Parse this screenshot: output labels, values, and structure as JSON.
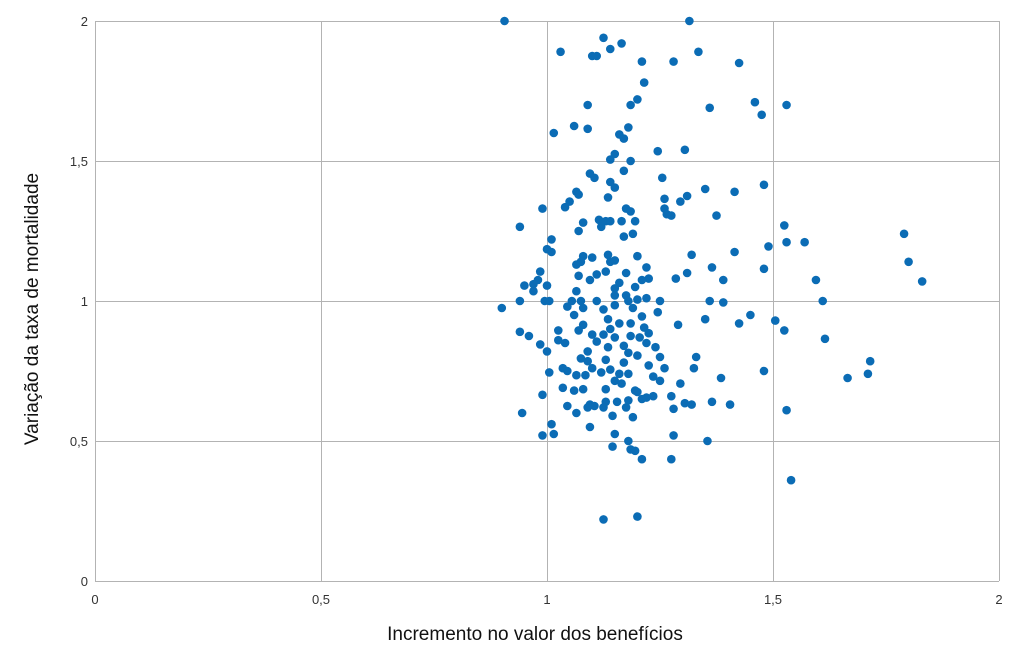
{
  "chart_data": {
    "type": "scatter",
    "title": "",
    "xlabel": "Incremento no valor dos benefícios",
    "ylabel": "Variação da taxa de mortalidade",
    "xlim": [
      0,
      2
    ],
    "ylim": [
      0,
      2
    ],
    "x_ticks": [
      0,
      0.5,
      1,
      1.5,
      2
    ],
    "y_ticks": [
      0,
      0.5,
      1,
      1.5,
      2
    ],
    "x_tick_labels": [
      "0",
      "0,5",
      "1",
      "1,5",
      "2"
    ],
    "y_tick_labels": [
      "0",
      "0,5",
      "1",
      "1,5",
      "2"
    ],
    "grid": true,
    "legend": "none",
    "marker_color": "#0b6cb5",
    "grid_color": "#b3b3b3",
    "series": [
      {
        "points": [
          [
            0.906,
            2.0
          ],
          [
            1.315,
            2.0
          ],
          [
            1.125,
            1.94
          ],
          [
            1.165,
            1.92
          ],
          [
            1.14,
            1.9
          ],
          [
            1.03,
            1.89
          ],
          [
            1.335,
            1.89
          ],
          [
            1.1,
            1.875
          ],
          [
            1.11,
            1.875
          ],
          [
            1.21,
            1.855
          ],
          [
            1.28,
            1.855
          ],
          [
            1.425,
            1.85
          ],
          [
            1.215,
            1.78
          ],
          [
            1.2,
            1.72
          ],
          [
            1.185,
            1.7
          ],
          [
            1.09,
            1.7
          ],
          [
            1.46,
            1.71
          ],
          [
            1.53,
            1.7
          ],
          [
            1.36,
            1.69
          ],
          [
            1.475,
            1.665
          ],
          [
            1.06,
            1.625
          ],
          [
            1.18,
            1.62
          ],
          [
            1.09,
            1.615
          ],
          [
            1.015,
            1.6
          ],
          [
            1.16,
            1.595
          ],
          [
            1.17,
            1.58
          ],
          [
            1.245,
            1.535
          ],
          [
            1.305,
            1.54
          ],
          [
            1.15,
            1.525
          ],
          [
            1.14,
            1.505
          ],
          [
            1.185,
            1.5
          ],
          [
            1.17,
            1.465
          ],
          [
            1.095,
            1.455
          ],
          [
            1.105,
            1.44
          ],
          [
            1.255,
            1.44
          ],
          [
            1.14,
            1.425
          ],
          [
            1.48,
            1.415
          ],
          [
            1.15,
            1.405
          ],
          [
            1.35,
            1.4
          ],
          [
            1.415,
            1.39
          ],
          [
            1.065,
            1.39
          ],
          [
            1.31,
            1.375
          ],
          [
            1.135,
            1.37
          ],
          [
            1.07,
            1.38
          ],
          [
            1.26,
            1.365
          ],
          [
            1.05,
            1.355
          ],
          [
            1.295,
            1.355
          ],
          [
            1.04,
            1.335
          ],
          [
            1.26,
            1.33
          ],
          [
            1.265,
            1.31
          ],
          [
            0.99,
            1.33
          ],
          [
            1.175,
            1.33
          ],
          [
            1.185,
            1.32
          ],
          [
            1.275,
            1.305
          ],
          [
            1.375,
            1.305
          ],
          [
            1.115,
            1.29
          ],
          [
            1.13,
            1.285
          ],
          [
            1.165,
            1.285
          ],
          [
            1.14,
            1.285
          ],
          [
            1.195,
            1.285
          ],
          [
            1.08,
            1.28
          ],
          [
            1.525,
            1.27
          ],
          [
            0.94,
            1.265
          ],
          [
            1.12,
            1.265
          ],
          [
            1.07,
            1.25
          ],
          [
            1.19,
            1.24
          ],
          [
            1.17,
            1.23
          ],
          [
            1.79,
            1.24
          ],
          [
            1.01,
            1.22
          ],
          [
            1.53,
            1.21
          ],
          [
            1.57,
            1.21
          ],
          [
            1.49,
            1.195
          ],
          [
            1.0,
            1.185
          ],
          [
            1.01,
            1.175
          ],
          [
            1.415,
            1.175
          ],
          [
            1.08,
            1.16
          ],
          [
            1.135,
            1.165
          ],
          [
            1.32,
            1.165
          ],
          [
            1.2,
            1.16
          ],
          [
            1.1,
            1.155
          ],
          [
            1.075,
            1.14
          ],
          [
            1.14,
            1.14
          ],
          [
            1.15,
            1.145
          ],
          [
            1.8,
            1.14
          ],
          [
            1.065,
            1.13
          ],
          [
            1.22,
            1.12
          ],
          [
            1.365,
            1.12
          ],
          [
            1.48,
            1.115
          ],
          [
            0.985,
            1.105
          ],
          [
            1.13,
            1.105
          ],
          [
            1.175,
            1.1
          ],
          [
            1.11,
            1.095
          ],
          [
            1.07,
            1.09
          ],
          [
            1.31,
            1.1
          ],
          [
            1.225,
            1.08
          ],
          [
            1.21,
            1.075
          ],
          [
            0.98,
            1.075
          ],
          [
            1.095,
            1.075
          ],
          [
            1.285,
            1.08
          ],
          [
            1.39,
            1.075
          ],
          [
            1.595,
            1.075
          ],
          [
            1.83,
            1.07
          ],
          [
            1.16,
            1.065
          ],
          [
            0.97,
            1.06
          ],
          [
            1.0,
            1.055
          ],
          [
            0.95,
            1.055
          ],
          [
            1.195,
            1.05
          ],
          [
            1.15,
            1.045
          ],
          [
            1.065,
            1.035
          ],
          [
            1.175,
            1.02
          ],
          [
            0.97,
            1.035
          ],
          [
            1.15,
            1.02
          ],
          [
            1.22,
            1.01
          ],
          [
            1.18,
            1.0
          ],
          [
            1.2,
            1.005
          ],
          [
            1.25,
            1.0
          ],
          [
            1.11,
            1.0
          ],
          [
            1.055,
            1.0
          ],
          [
            0.995,
            1.0
          ],
          [
            1.005,
            1.0
          ],
          [
            0.94,
            1.0
          ],
          [
            1.075,
            1.0
          ],
          [
            1.36,
            1.0
          ],
          [
            1.39,
            0.995
          ],
          [
            1.61,
            1.0
          ],
          [
            1.15,
            0.985
          ],
          [
            1.045,
            0.98
          ],
          [
            0.9,
            0.975
          ],
          [
            1.08,
            0.975
          ],
          [
            1.19,
            0.975
          ],
          [
            1.125,
            0.97
          ],
          [
            1.245,
            0.96
          ],
          [
            1.45,
            0.95
          ],
          [
            1.06,
            0.95
          ],
          [
            1.21,
            0.945
          ],
          [
            1.135,
            0.935
          ],
          [
            1.505,
            0.93
          ],
          [
            1.35,
            0.935
          ],
          [
            1.16,
            0.92
          ],
          [
            1.185,
            0.92
          ],
          [
            1.29,
            0.915
          ],
          [
            1.08,
            0.915
          ],
          [
            1.425,
            0.92
          ],
          [
            1.14,
            0.9
          ],
          [
            1.215,
            0.905
          ],
          [
            1.07,
            0.895
          ],
          [
            0.94,
            0.89
          ],
          [
            1.025,
            0.895
          ],
          [
            1.525,
            0.895
          ],
          [
            1.225,
            0.885
          ],
          [
            1.125,
            0.88
          ],
          [
            0.96,
            0.875
          ],
          [
            1.1,
            0.88
          ],
          [
            1.185,
            0.875
          ],
          [
            1.205,
            0.87
          ],
          [
            1.15,
            0.87
          ],
          [
            1.615,
            0.865
          ],
          [
            1.025,
            0.86
          ],
          [
            1.11,
            0.855
          ],
          [
            1.04,
            0.85
          ],
          [
            1.22,
            0.85
          ],
          [
            0.985,
            0.845
          ],
          [
            1.17,
            0.84
          ],
          [
            1.135,
            0.835
          ],
          [
            1.24,
            0.835
          ],
          [
            1.0,
            0.82
          ],
          [
            1.09,
            0.82
          ],
          [
            1.18,
            0.815
          ],
          [
            1.2,
            0.805
          ],
          [
            1.25,
            0.8
          ],
          [
            1.33,
            0.8
          ],
          [
            1.075,
            0.795
          ],
          [
            1.13,
            0.79
          ],
          [
            1.09,
            0.785
          ],
          [
            1.715,
            0.785
          ],
          [
            1.17,
            0.78
          ],
          [
            1.225,
            0.77
          ],
          [
            1.1,
            0.76
          ],
          [
            1.14,
            0.755
          ],
          [
            1.26,
            0.76
          ],
          [
            1.325,
            0.76
          ],
          [
            1.035,
            0.76
          ],
          [
            1.045,
            0.75
          ],
          [
            1.48,
            0.75
          ],
          [
            1.005,
            0.745
          ],
          [
            1.12,
            0.745
          ],
          [
            1.16,
            0.74
          ],
          [
            1.18,
            0.74
          ],
          [
            1.71,
            0.74
          ],
          [
            1.065,
            0.735
          ],
          [
            1.085,
            0.735
          ],
          [
            1.235,
            0.73
          ],
          [
            1.385,
            0.725
          ],
          [
            1.665,
            0.725
          ],
          [
            1.15,
            0.715
          ],
          [
            1.25,
            0.715
          ],
          [
            1.295,
            0.705
          ],
          [
            1.165,
            0.705
          ],
          [
            1.035,
            0.69
          ],
          [
            1.13,
            0.685
          ],
          [
            1.08,
            0.685
          ],
          [
            1.06,
            0.68
          ],
          [
            1.2,
            0.675
          ],
          [
            1.195,
            0.68
          ],
          [
            1.235,
            0.66
          ],
          [
            1.275,
            0.66
          ],
          [
            1.22,
            0.655
          ],
          [
            1.21,
            0.65
          ],
          [
            1.365,
            0.64
          ],
          [
            0.99,
            0.665
          ],
          [
            1.18,
            0.645
          ],
          [
            1.155,
            0.64
          ],
          [
            1.13,
            0.64
          ],
          [
            1.095,
            0.63
          ],
          [
            1.305,
            0.635
          ],
          [
            1.32,
            0.63
          ],
          [
            1.405,
            0.63
          ],
          [
            1.175,
            0.62
          ],
          [
            1.125,
            0.62
          ],
          [
            1.105,
            0.625
          ],
          [
            1.045,
            0.625
          ],
          [
            1.09,
            0.62
          ],
          [
            1.28,
            0.615
          ],
          [
            1.53,
            0.61
          ],
          [
            1.065,
            0.6
          ],
          [
            0.945,
            0.6
          ],
          [
            1.145,
            0.59
          ],
          [
            1.19,
            0.585
          ],
          [
            1.01,
            0.56
          ],
          [
            1.095,
            0.55
          ],
          [
            1.15,
            0.525
          ],
          [
            1.28,
            0.52
          ],
          [
            1.015,
            0.525
          ],
          [
            0.99,
            0.52
          ],
          [
            1.18,
            0.5
          ],
          [
            1.355,
            0.5
          ],
          [
            1.145,
            0.48
          ],
          [
            1.185,
            0.47
          ],
          [
            1.195,
            0.465
          ],
          [
            1.21,
            0.435
          ],
          [
            1.275,
            0.435
          ],
          [
            1.54,
            0.36
          ],
          [
            1.125,
            0.22
          ],
          [
            1.2,
            0.23
          ]
        ]
      }
    ]
  }
}
